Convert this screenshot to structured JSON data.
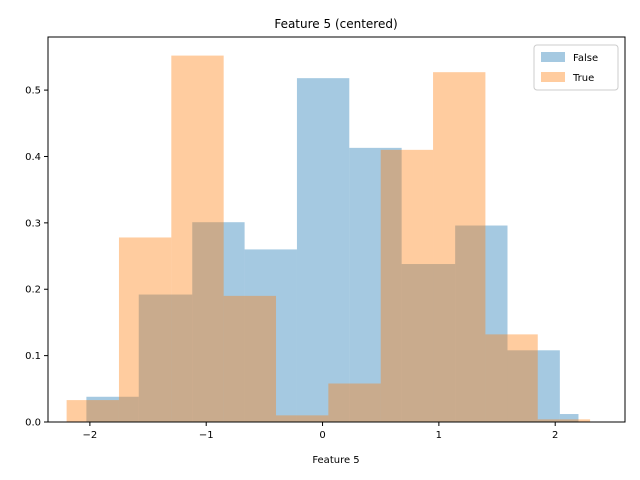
{
  "chart_data": {
    "type": "histogram",
    "title": "Feature 5 (centered)",
    "xlabel": "Feature 5",
    "ylabel": "",
    "xlim": [
      -2.36,
      2.6
    ],
    "ylim": [
      0,
      0.58
    ],
    "xticks": [
      -2,
      -1,
      0,
      1,
      2
    ],
    "xtick_labels": [
      "−2",
      "−1",
      "0",
      "1",
      "2"
    ],
    "yticks": [
      0.0,
      0.1,
      0.2,
      0.3,
      0.4,
      0.5
    ],
    "ytick_labels": [
      "0.0",
      "0.1",
      "0.2",
      "0.3",
      "0.4",
      "0.5"
    ],
    "grid": false,
    "legend_position": "top-right",
    "series": [
      {
        "name": "False",
        "color": "#1f77b4",
        "opacity": 0.4,
        "bin_edges": [
          -2.03,
          -1.58,
          -1.12,
          -0.67,
          -0.22,
          0.23,
          0.68,
          1.14,
          1.59,
          2.04,
          2.2
        ],
        "values": [
          0.038,
          0.192,
          0.301,
          0.26,
          0.518,
          0.413,
          0.238,
          0.296,
          0.108,
          0.012
        ]
      },
      {
        "name": "True",
        "color": "#ff7f0e",
        "opacity": 0.4,
        "bin_edges": [
          -2.2,
          -1.75,
          -1.3,
          -0.85,
          -0.4,
          0.05,
          0.5,
          0.95,
          1.4,
          1.85,
          2.3
        ],
        "values": [
          0.033,
          0.278,
          0.552,
          0.19,
          0.01,
          0.058,
          0.41,
          0.527,
          0.132,
          0.004
        ]
      }
    ]
  }
}
